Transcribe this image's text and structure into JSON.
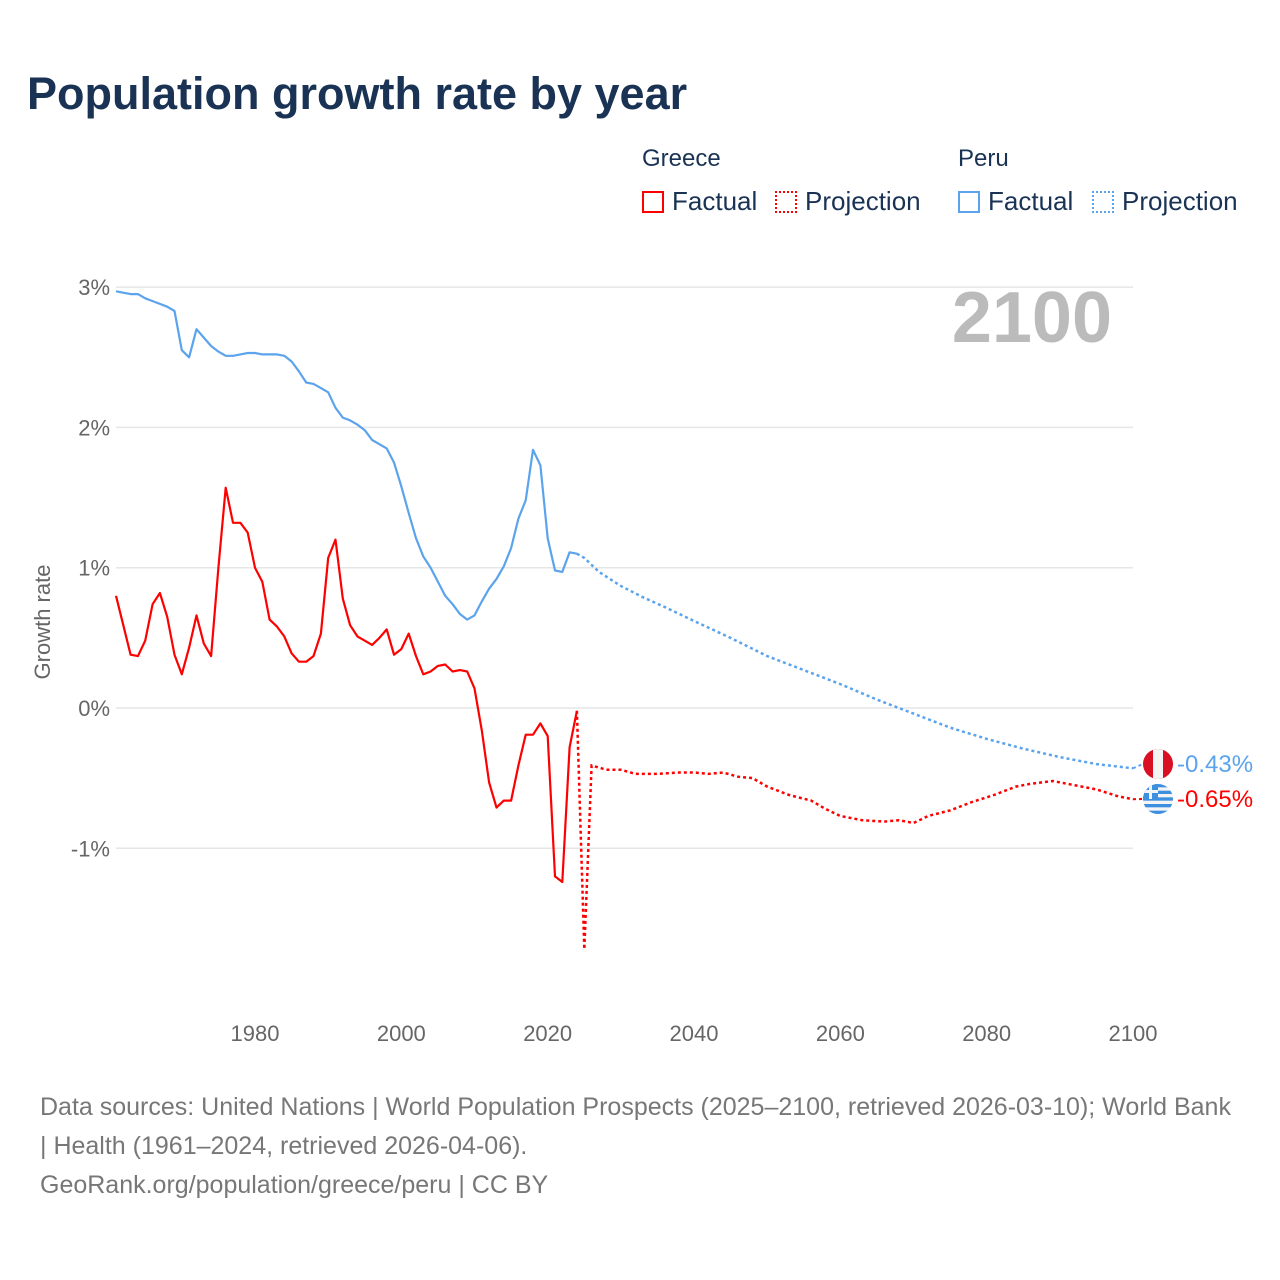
{
  "title": "Population growth rate by year",
  "legend": {
    "groups": [
      {
        "name": "Greece",
        "color": "#ff0000",
        "factual": "Factual",
        "projection": "Projection"
      },
      {
        "name": "Peru",
        "color": "#5ba3ec",
        "factual": "Factual",
        "projection": "Projection"
      }
    ]
  },
  "chart_data": {
    "type": "line",
    "title": "Population growth rate by year",
    "xlabel": "",
    "ylabel": "Growth rate",
    "year_label": "2100",
    "xlim": [
      1961,
      2100
    ],
    "ylim": [
      -2,
      3.2
    ],
    "x_ticks": [
      "1980",
      "2000",
      "2020",
      "2040",
      "2060",
      "2080",
      "2100"
    ],
    "x_tick_values": [
      1980,
      2000,
      2020,
      2040,
      2060,
      2080,
      2100
    ],
    "y_ticks": [
      "3%",
      "2%",
      "1%",
      "0%",
      "-1%"
    ],
    "y_tick_values": [
      3,
      2,
      1,
      0,
      -1
    ],
    "grid": true,
    "legend_position": "top-right",
    "series": [
      {
        "name": "Greece",
        "color": "#ff0000",
        "end_label": "-0.65%",
        "factual_start": 1961,
        "factual": [
          0.8,
          0.59,
          0.38,
          0.37,
          0.48,
          0.74,
          0.82,
          0.65,
          0.38,
          0.24,
          0.43,
          0.66,
          0.46,
          0.37,
          1.0,
          1.57,
          1.32,
          1.32,
          1.25,
          1.0,
          0.9,
          0.63,
          0.58,
          0.51,
          0.39,
          0.33,
          0.33,
          0.37,
          0.53,
          1.07,
          1.2,
          0.78,
          0.59,
          0.51,
          0.48,
          0.45,
          0.5,
          0.56,
          0.38,
          0.42,
          0.53,
          0.37,
          0.24,
          0.26,
          0.3,
          0.31,
          0.26,
          0.27,
          0.26,
          0.14,
          -0.16,
          -0.53,
          -0.71,
          -0.66,
          -0.66,
          -0.41,
          -0.19,
          -0.19,
          -0.11,
          -0.2,
          -1.2,
          -1.24,
          -0.28,
          -0.02
        ],
        "projection": [
          [
            2024,
            -0.02
          ],
          [
            2025,
            -1.72
          ],
          [
            2026,
            -0.41
          ],
          [
            2028,
            -0.44
          ],
          [
            2030,
            -0.44
          ],
          [
            2032,
            -0.47
          ],
          [
            2035,
            -0.47
          ],
          [
            2038,
            -0.46
          ],
          [
            2040,
            -0.46
          ],
          [
            2042,
            -0.47
          ],
          [
            2044,
            -0.46
          ],
          [
            2046,
            -0.49
          ],
          [
            2048,
            -0.5
          ],
          [
            2050,
            -0.56
          ],
          [
            2053,
            -0.62
          ],
          [
            2056,
            -0.66
          ],
          [
            2058,
            -0.72
          ],
          [
            2060,
            -0.77
          ],
          [
            2063,
            -0.8
          ],
          [
            2066,
            -0.81
          ],
          [
            2068,
            -0.8
          ],
          [
            2070,
            -0.82
          ],
          [
            2072,
            -0.77
          ],
          [
            2075,
            -0.73
          ],
          [
            2078,
            -0.67
          ],
          [
            2081,
            -0.62
          ],
          [
            2084,
            -0.56
          ],
          [
            2086,
            -0.54
          ],
          [
            2089,
            -0.52
          ],
          [
            2092,
            -0.55
          ],
          [
            2095,
            -0.58
          ],
          [
            2098,
            -0.63
          ],
          [
            2100,
            -0.65
          ]
        ]
      },
      {
        "name": "Peru",
        "color": "#5ba3ec",
        "end_label": "-0.43%",
        "factual_start": 1961,
        "factual": [
          2.97,
          2.96,
          2.95,
          2.95,
          2.92,
          2.9,
          2.88,
          2.86,
          2.83,
          2.55,
          2.5,
          2.7,
          2.64,
          2.58,
          2.54,
          2.51,
          2.51,
          2.52,
          2.53,
          2.53,
          2.52,
          2.52,
          2.52,
          2.51,
          2.47,
          2.4,
          2.32,
          2.31,
          2.28,
          2.25,
          2.14,
          2.07,
          2.05,
          2.02,
          1.98,
          1.91,
          1.88,
          1.85,
          1.75,
          1.58,
          1.39,
          1.21,
          1.08,
          1.0,
          0.9,
          0.8,
          0.74,
          0.67,
          0.63,
          0.66,
          0.76,
          0.85,
          0.92,
          1.01,
          1.14,
          1.35,
          1.48,
          1.84,
          1.73,
          1.21,
          0.98,
          0.97,
          1.11,
          1.1
        ],
        "projection": [
          [
            2024,
            1.1
          ],
          [
            2025,
            1.07
          ],
          [
            2027,
            0.97
          ],
          [
            2030,
            0.87
          ],
          [
            2033,
            0.79
          ],
          [
            2036,
            0.72
          ],
          [
            2040,
            0.62
          ],
          [
            2045,
            0.5
          ],
          [
            2050,
            0.37
          ],
          [
            2055,
            0.27
          ],
          [
            2060,
            0.17
          ],
          [
            2065,
            0.06
          ],
          [
            2070,
            -0.04
          ],
          [
            2075,
            -0.14
          ],
          [
            2080,
            -0.22
          ],
          [
            2085,
            -0.29
          ],
          [
            2090,
            -0.35
          ],
          [
            2095,
            -0.4
          ],
          [
            2100,
            -0.43
          ]
        ]
      }
    ]
  },
  "footer": {
    "sources": "Data sources: United Nations | World Population Prospects (2025–2100, retrieved 2026-03-10); World Bank | Health (1961–2024, retrieved 2026-04-06).",
    "credit": "GeoRank.org/population/greece/peru | CC BY"
  }
}
